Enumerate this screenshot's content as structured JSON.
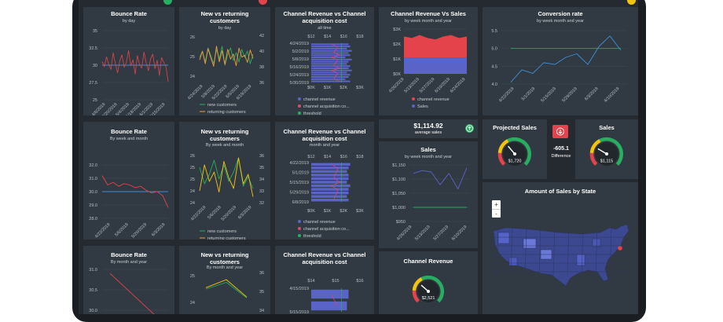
{
  "colors": {
    "blue": "#3f8fd6",
    "red": "#e4434b",
    "green": "#27ae60",
    "orange": "#f39c3c",
    "yellow": "#f1c40f",
    "bar": "#5a63c8",
    "map": "#3c4890",
    "pink": "#d94b6e"
  },
  "panels": {
    "br_day": {
      "title": "Bounce Rate",
      "subtitle": "by day",
      "yticks": [
        "35",
        "32.5",
        "30",
        "27.5",
        "25"
      ],
      "xticks": [
        "4/6/2019",
        "4/20/2019",
        "5/4/2019",
        "5/18/2019",
        "6/1/2019",
        "6/15/2019"
      ]
    },
    "br_week": {
      "title": "Bounce Rate",
      "subtitle": "By week and month",
      "yticks": [
        "32.0",
        "31.0",
        "30.0",
        "29.0",
        "28.0"
      ],
      "xticks": [
        "4/22/2019",
        "5/6/2019",
        "5/20/2019",
        "6/3/2019"
      ]
    },
    "br_month": {
      "title": "Bounce Rate",
      "subtitle": "By month and year",
      "yticks": [
        "31.0",
        "30.5",
        "30.0"
      ]
    },
    "nr_day": {
      "title": "New vs returning customers",
      "subtitle": "by day",
      "yticks_left": [
        "26",
        "25",
        "24"
      ],
      "yticks_right": [
        "42",
        "40",
        "38",
        "36"
      ],
      "xticks": [
        "4/24/2019",
        "5/8/2019",
        "5/22/2019",
        "6/5/2019",
        "6/19/2019"
      ],
      "legend": [
        "new customers",
        "returning customers"
      ]
    },
    "nr_week": {
      "title": "New vs returning customers",
      "subtitle": "By week and month",
      "yticks_left": [
        "26",
        "25",
        "25",
        "24",
        "24"
      ],
      "yticks_right": [
        "36",
        "35",
        "34",
        "33",
        "32"
      ],
      "xticks": [
        "4/22/2019",
        "5/6/2019",
        "5/20/2019",
        "6/3/2019"
      ],
      "legend": [
        "new customers",
        "returning customers"
      ]
    },
    "nr_month": {
      "title": "New vs returning customers",
      "subtitle": "By month and year",
      "yticks_left": [
        "25",
        "24"
      ],
      "yticks_right": [
        "36",
        "35",
        "34"
      ]
    },
    "cr_all": {
      "title": "Channel Revenue vs Channel acquisition cost",
      "subtitle": "all time",
      "xticks_top": [
        "$12",
        "$14",
        "$16",
        "$18"
      ],
      "yticks": [
        "4/24/2019",
        "5/2/2019",
        "5/8/2019",
        "5/16/2019",
        "5/24/2019",
        "5/30/2019"
      ],
      "xticks": [
        "$0K",
        "$1K",
        "$2K",
        "$3K"
      ],
      "legend": [
        "channel revenue",
        "channel acquisition co...",
        "threshold"
      ]
    },
    "cr_month": {
      "title": "Channel Revenue vs Channel acquisition cost",
      "subtitle": "month and year",
      "xticks_top": [
        "$12",
        "$14",
        "$16",
        "$18"
      ],
      "yticks": [
        "4/22/2019",
        "5/1/2019",
        "5/15/2019",
        "5/29/2019",
        "6/8/2019"
      ],
      "xticks": [
        "$0K",
        "$1K",
        "$2K",
        "$3K"
      ],
      "legend": [
        "channel revenue",
        "channel acquisition co...",
        "threshold"
      ]
    },
    "cr_year": {
      "title": "Channel Revenue vs Channel acquisition cost",
      "xticks_top": [
        "$14",
        "$15",
        "$16"
      ],
      "yticks": [
        "4/15/2019",
        "5/15/2019"
      ]
    },
    "cvs": {
      "title": "Channel Revenue Vs Sales",
      "subtitle": "by week month and year",
      "yticks": [
        "$3K",
        "$2K",
        "$1K",
        "$0K"
      ],
      "xticks": [
        "4/26/2019",
        "5/13/2019",
        "5/27/2019",
        "6/10/2019",
        "6/24/2019"
      ],
      "legend": [
        "channel revenue",
        "Sales"
      ]
    },
    "conv": {
      "title": "Conversion rate",
      "subtitle": "by week month and year",
      "yticks": [
        "5.5",
        "5.0",
        "4.5",
        "4.0"
      ],
      "xticks": [
        "4/22/2019",
        "5/1/2019",
        "5/15/2019",
        "5/29/2019",
        "6/3/2019",
        "6/10/2019"
      ]
    },
    "avg": {
      "value": "$1,114.92",
      "label": "average sales"
    },
    "sales": {
      "title": "Sales",
      "subtitle": "by week month and year",
      "yticks": [
        "$1,150",
        "$1,100",
        "$1,050",
        "$1,000",
        "$950"
      ],
      "xticks": [
        "4/26/2019",
        "5/13/2019",
        "5/27/2019",
        "6/10/2019"
      ]
    },
    "chrev": {
      "title": "Channel Revenue",
      "gauge_value": "$2,521"
    },
    "proj": {
      "title": "Projected Sales",
      "gauge_value": "$1,720"
    },
    "diff": {
      "value": "-605.1",
      "label": "Difference"
    },
    "sales_g": {
      "title": "Sales",
      "gauge_value": "$1,115"
    },
    "map": {
      "title": "Amount of Sales by State",
      "zoom_in": "+",
      "zoom_out": "-"
    }
  },
  "chart_data": [
    {
      "type": "line",
      "title": "Bounce Rate",
      "series": [
        {
          "values": [
            30.5,
            29.8,
            31.2,
            30.1,
            29.4,
            31.8,
            30.2,
            28.9,
            30.6,
            31.5,
            29.7,
            30.4,
            32.1,
            29.9,
            30.8,
            28.7,
            31.4,
            30.0,
            29.6,
            31.9,
            30.3,
            29.2,
            30.9,
            31.6,
            29.5,
            30.7,
            28.5,
            31.1,
            30.4,
            29.8,
            27.6
          ]
        }
      ],
      "ylim": [
        25,
        35
      ]
    },
    {
      "type": "line",
      "title": "Bounce Rate",
      "series": [
        {
          "values": [
            31.2,
            30.5,
            30.7,
            30.4,
            30.6,
            30.5,
            30.3,
            30.4,
            30.1,
            29.9,
            30.0,
            29.7,
            28.8
          ]
        }
      ],
      "ylim": [
        28,
        32
      ]
    },
    {
      "type": "line",
      "title": "Bounce Rate",
      "series": [
        {
          "values": [
            30.9,
            30.4,
            29.9
          ]
        }
      ],
      "ylim": [
        30,
        31
      ]
    },
    {
      "type": "line",
      "title": "New vs returning customers",
      "series": [
        {
          "name": "new customers",
          "values": [
            25.2,
            25.6,
            24.9,
            25.8,
            25.3,
            24.8,
            25.7,
            25.1,
            25.9,
            24.7,
            25.4,
            25.8,
            25.0,
            25.5,
            24.9,
            25.7,
            25.2,
            25.6,
            24.8,
            25.4
          ]
        },
        {
          "name": "returning customers",
          "values": [
            38.5,
            39.8,
            37.9,
            40.2,
            38.8,
            37.5,
            40.6,
            38.2,
            39.9,
            37.8,
            40.1,
            38.6,
            39.4,
            37.6,
            40.3,
            38.9,
            39.2,
            38.1,
            40.0,
            38.7
          ]
        }
      ]
    },
    {
      "type": "line",
      "title": "New vs returning customers",
      "series": [
        {
          "name": "new customers",
          "values": [
            25.5,
            24.8,
            25.2,
            25.8,
            25.0,
            25.6,
            24.9,
            25.3,
            25.9,
            24.7,
            25.1,
            24.6
          ]
        },
        {
          "name": "returning customers",
          "values": [
            33.0,
            35.2,
            33.8,
            34.6,
            32.9,
            35.5,
            34.1,
            33.2,
            35.8,
            33.6,
            34.4,
            32.5
          ]
        }
      ]
    },
    {
      "type": "line",
      "title": "New vs returning customers",
      "series": [
        {
          "name": "new customers",
          "values": [
            24.6,
            24.9,
            24.2
          ]
        },
        {
          "name": "returning customers",
          "values": [
            34.6,
            35.2,
            33.9
          ]
        }
      ]
    },
    {
      "type": "bar",
      "title": "Channel Revenue vs Channel acquisition cost",
      "values": [
        2.3,
        2.4,
        2.2,
        2.5,
        2.3,
        2.4,
        2.1,
        2.5,
        2.3,
        2.2,
        2.4,
        2.3,
        2.5,
        2.2,
        2.4,
        2.3,
        2.1,
        2.4
      ],
      "xlim": [
        0,
        3
      ]
    },
    {
      "type": "bar",
      "title": "Channel Revenue vs Channel acquisition cost",
      "values": [
        2.4,
        2.3,
        2.2,
        2.3,
        2.3,
        2.2,
        2.4,
        2.3,
        2.3,
        2.2,
        2.3
      ],
      "xlim": [
        0,
        3
      ]
    },
    {
      "type": "bar",
      "title": "Channel Revenue vs Channel acquisition cost",
      "values": [
        2.3,
        2.2
      ]
    },
    {
      "type": "area",
      "title": "Channel Revenue Vs Sales",
      "series": [
        {
          "name": "channel revenue",
          "values": [
            2.5,
            2.4,
            2.6,
            2.4,
            2.3,
            2.5,
            2.6,
            2.4,
            2.5
          ]
        },
        {
          "name": "Sales",
          "values": [
            1.1,
            1.1,
            1.1,
            1.1,
            1.1,
            1.1,
            1.1,
            1.1,
            1.1
          ]
        }
      ],
      "ylim": [
        0,
        3
      ]
    },
    {
      "type": "line",
      "title": "Conversion rate",
      "series": [
        {
          "values": [
            4.05,
            4.4,
            4.3,
            4.6,
            4.55,
            4.75,
            4.85,
            4.55,
            5.05,
            5.35,
            4.95
          ]
        },
        {
          "values": [
            5.0,
            5.0,
            5.0,
            5.0,
            5.0,
            5.0,
            5.0,
            5.0,
            5.0,
            5.0,
            5.0
          ]
        }
      ],
      "ylim": [
        4,
        5.5
      ]
    },
    {
      "type": "line",
      "title": "Sales",
      "series": [
        {
          "values": [
            1120,
            1130,
            1125,
            1080,
            1120,
            1065,
            1140
          ]
        },
        {
          "values": [
            1000,
            1000,
            1000,
            1000,
            1000,
            1000,
            1000
          ]
        }
      ],
      "ylim": [
        950,
        1150
      ]
    }
  ]
}
